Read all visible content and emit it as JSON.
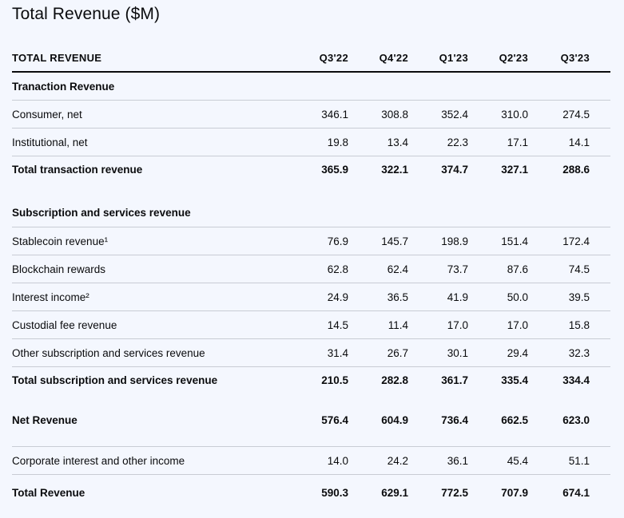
{
  "title": "Total Revenue ($M)",
  "header": {
    "label": "TOTAL REVENUE",
    "periods": [
      "Q3'22",
      "Q4'22",
      "Q1'23",
      "Q2'23",
      "Q3'23"
    ]
  },
  "transaction": {
    "heading": "Tranaction Revenue",
    "rows": [
      {
        "label": "Consumer, net",
        "values": [
          "346.1",
          "308.8",
          "352.4",
          "310.0",
          "274.5"
        ]
      },
      {
        "label": "Institutional, net",
        "values": [
          "19.8",
          "13.4",
          "22.3",
          "17.1",
          "14.1"
        ]
      }
    ],
    "total": {
      "label": "Total transaction revenue",
      "values": [
        "365.9",
        "322.1",
        "374.7",
        "327.1",
        "288.6"
      ]
    }
  },
  "subscription": {
    "heading": "Subscription and services revenue",
    "rows": [
      {
        "label": "Stablecoin revenue¹",
        "values": [
          "76.9",
          "145.7",
          "198.9",
          "151.4",
          "172.4"
        ]
      },
      {
        "label": "Blockchain rewards",
        "values": [
          "62.8",
          "62.4",
          "73.7",
          "87.6",
          "74.5"
        ]
      },
      {
        "label": "Interest income²",
        "values": [
          "24.9",
          "36.5",
          "41.9",
          "50.0",
          "39.5"
        ]
      },
      {
        "label": "Custodial fee revenue",
        "values": [
          "14.5",
          "11.4",
          "17.0",
          "17.0",
          "15.8"
        ]
      },
      {
        "label": "Other subscription and services revenue",
        "values": [
          "31.4",
          "26.7",
          "30.1",
          "29.4",
          "32.3"
        ]
      }
    ],
    "total": {
      "label": "Total subscription and services revenue",
      "values": [
        "210.5",
        "282.8",
        "361.7",
        "335.4",
        "334.4"
      ]
    }
  },
  "net": {
    "label": "Net Revenue",
    "values": [
      "576.4",
      "604.9",
      "736.4",
      "662.5",
      "623.0"
    ]
  },
  "corporate": {
    "label": "Corporate interest and other income",
    "values": [
      "14.0",
      "24.2",
      "36.1",
      "45.4",
      "51.1"
    ]
  },
  "grand_total": {
    "label": "Total Revenue",
    "values": [
      "590.3",
      "629.1",
      "772.5",
      "707.9",
      "674.1"
    ]
  }
}
